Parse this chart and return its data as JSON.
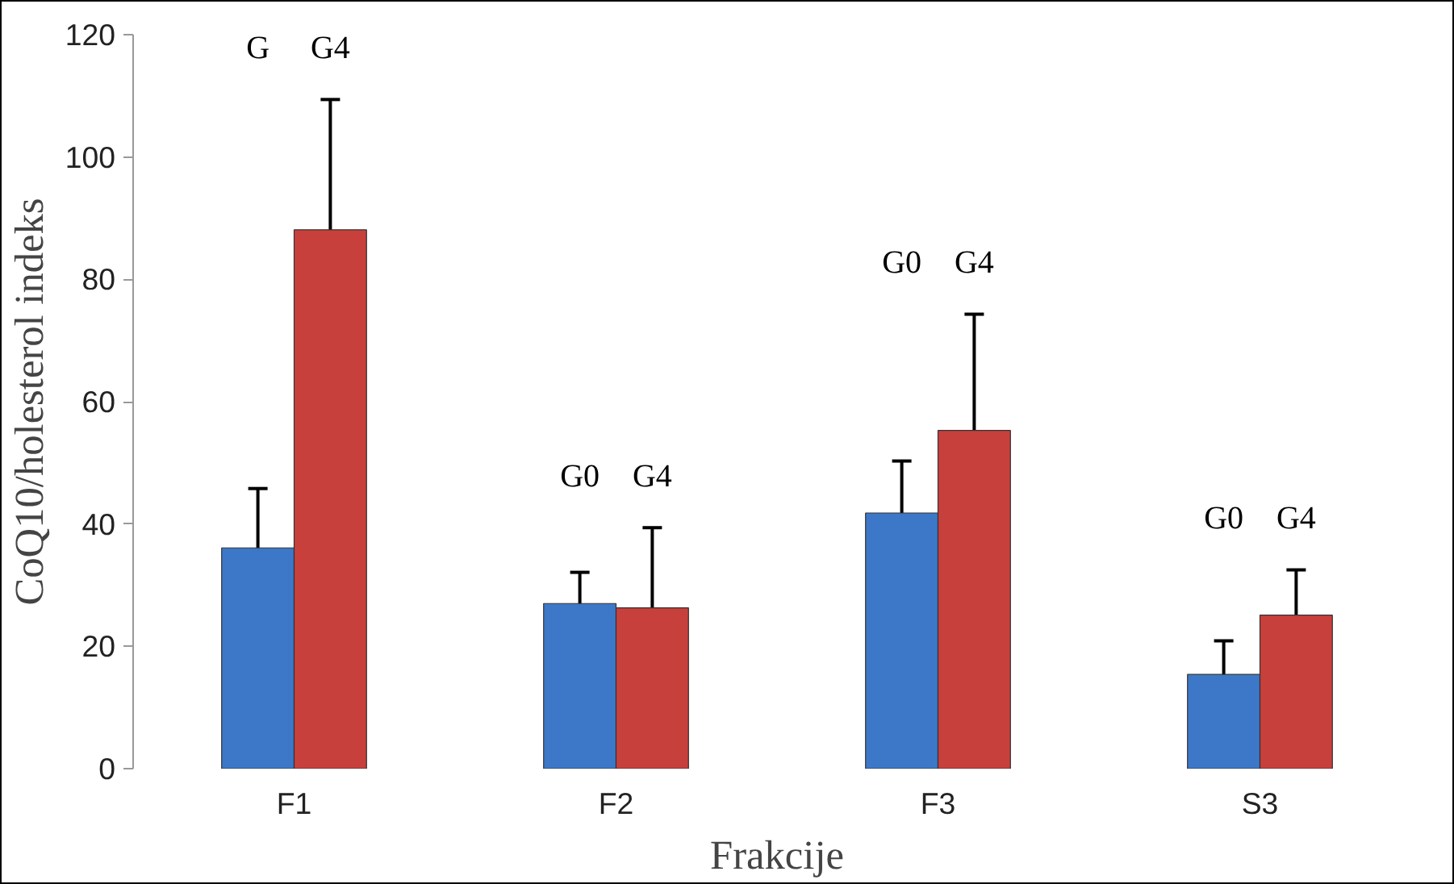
{
  "chart_data": {
    "type": "bar",
    "xlabel": "Frakcije",
    "ylabel": "CoQ10/holesterol indeks",
    "categories": [
      "F1",
      "F2",
      "F3",
      "S3"
    ],
    "series": [
      {
        "color": "#3d78c8",
        "values": [
          36.1,
          27.0,
          41.8,
          15.4
        ],
        "errors": [
          9.7,
          5.1,
          8.5,
          5.5
        ]
      },
      {
        "color": "#c8403c",
        "values": [
          88.1,
          26.3,
          55.3,
          25.1
        ],
        "errors": [
          21.3,
          13.1,
          19,
          7.4
        ]
      }
    ],
    "ylim": [
      0,
      120
    ],
    "yticks": [
      0,
      20,
      40,
      60,
      80,
      100,
      120
    ],
    "grid": false,
    "annotations": [
      "G",
      "G4",
      "G0",
      "G4",
      "G0",
      "G4",
      "G0",
      "G4"
    ]
  }
}
